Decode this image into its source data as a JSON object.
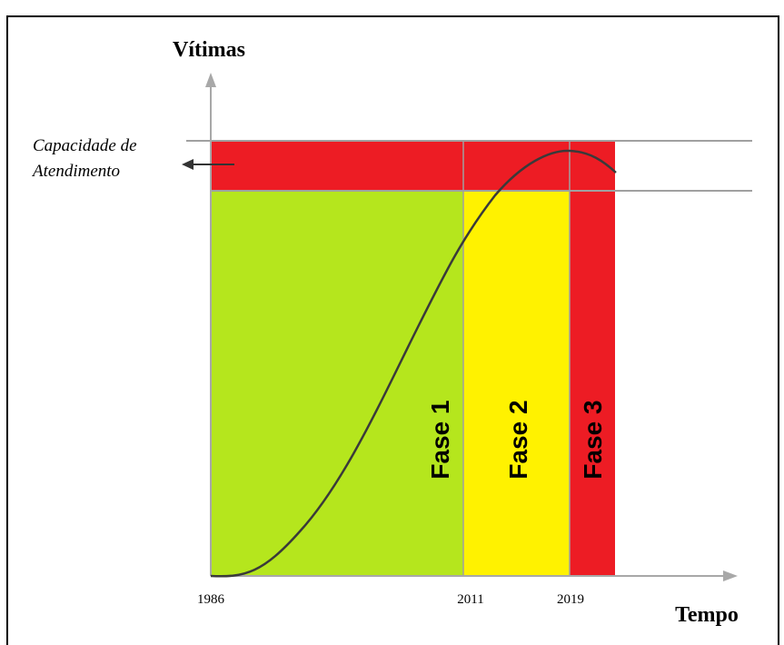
{
  "diagram": {
    "y_axis_label": "Vítimas",
    "x_axis_label": "Tempo",
    "capacity_label": [
      "Capacidade de",
      "Atendimento"
    ],
    "phases": [
      "Fase 1",
      "Fase 2",
      "Fase 3"
    ],
    "ticks": [
      "1986",
      "2011",
      "2019"
    ]
  }
}
